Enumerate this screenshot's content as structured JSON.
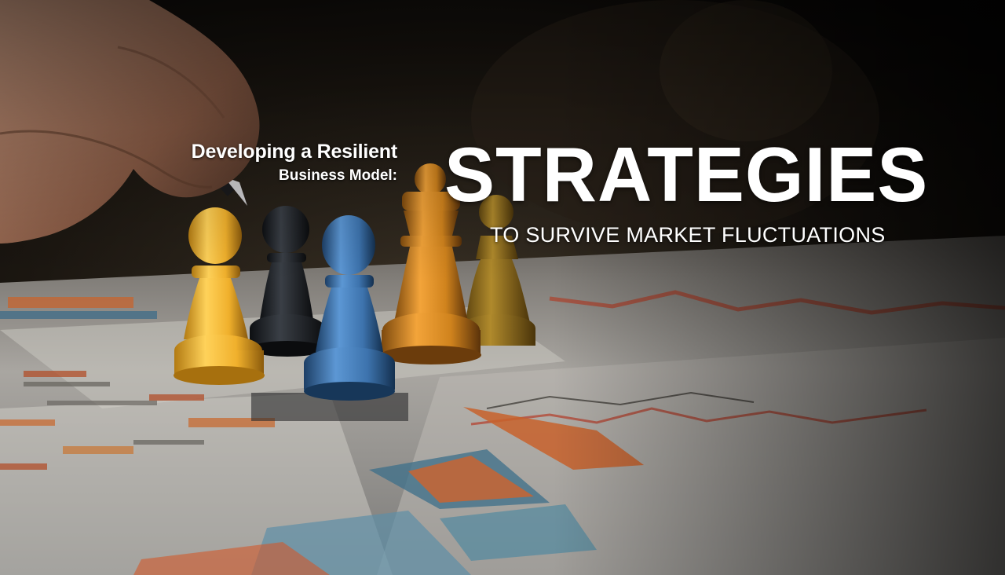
{
  "banner": {
    "kicker_line1": "Developing a Resilient",
    "kicker_line2": "Business Model:",
    "headline": "STRATEGIES",
    "subline": "TO SURVIVE MARKET FLUCTUATIONS"
  },
  "photo": {
    "subject": "hand-with-pen-over-chess-pawns-on-charts",
    "colors": {
      "background": "#0d0b09",
      "pawn_yellow": "#f2b630",
      "pawn_blue": "#3f78b5",
      "pawn_orange": "#d98a1e",
      "pawn_black": "#1f2226",
      "chart_red": "#c8422a"
    }
  }
}
